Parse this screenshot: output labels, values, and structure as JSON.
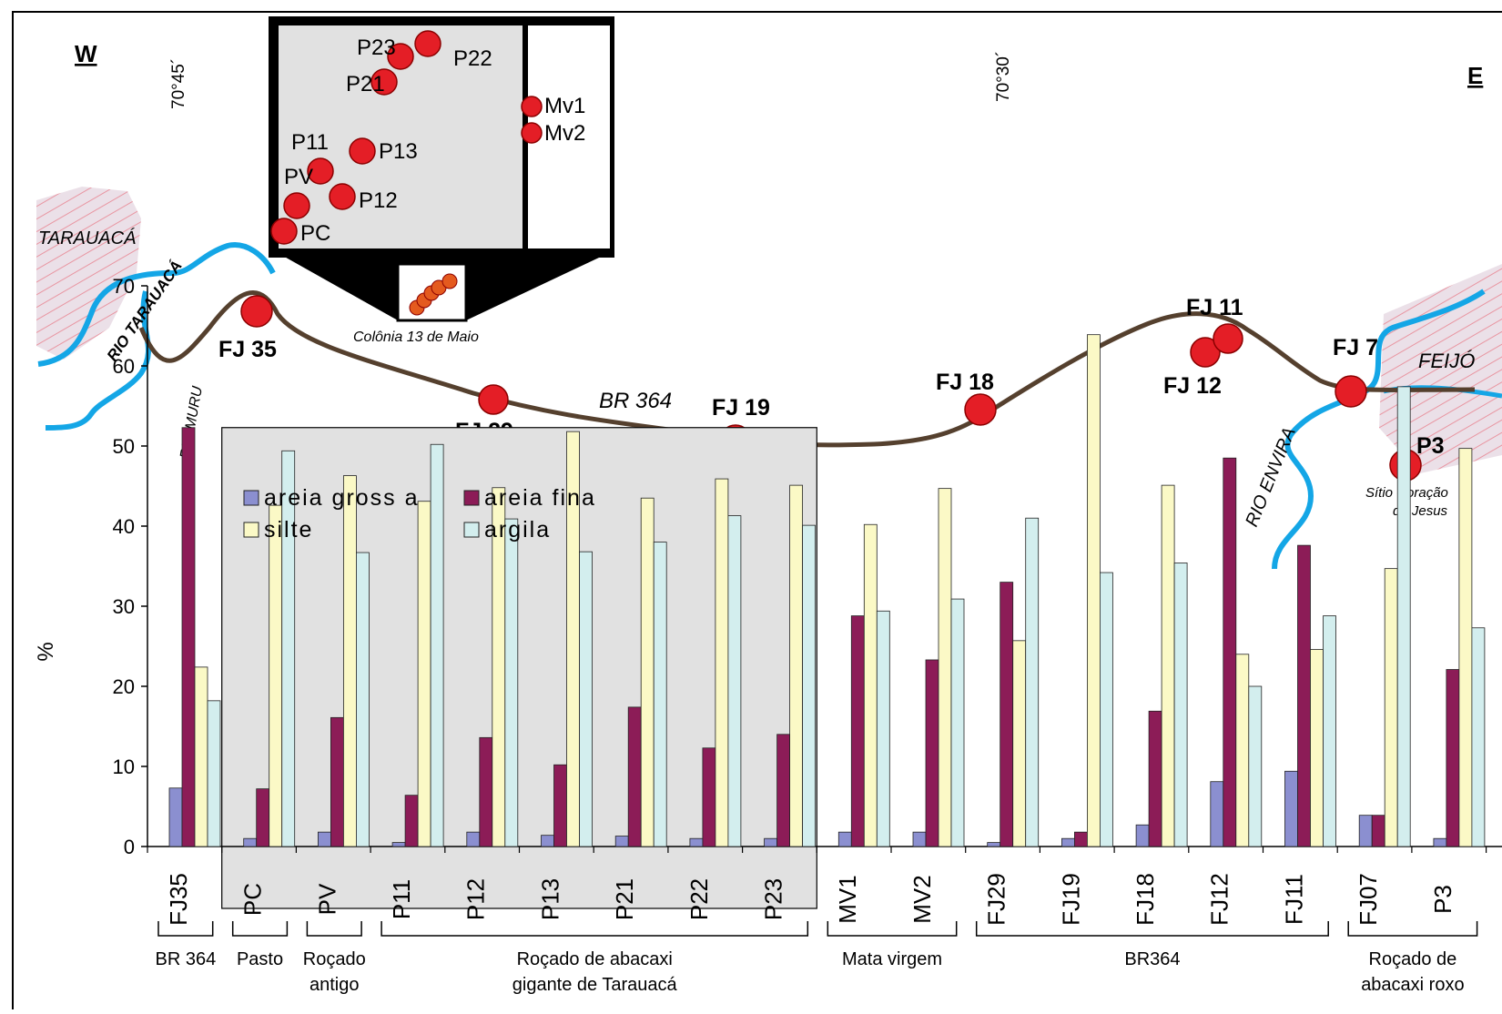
{
  "chart_data": {
    "type": "bar",
    "ylabel": "%",
    "ylim": [
      0,
      70
    ],
    "yticks": [
      0,
      10,
      20,
      30,
      40,
      50,
      60,
      70
    ],
    "categories": [
      "FJ35",
      "PC",
      "PV",
      "P11",
      "P12",
      "P13",
      "P21",
      "P22",
      "P23",
      "MV1",
      "MV2",
      "FJ29",
      "FJ19",
      "FJ18",
      "FJ12",
      "FJ11",
      "FJ07",
      "P3"
    ],
    "series": [
      {
        "name": "areia gross a",
        "color": "#8b8fd0",
        "values": [
          7.3,
          1.0,
          1.8,
          0.5,
          1.8,
          1.4,
          1.3,
          1.0,
          1.0,
          1.8,
          1.8,
          0.5,
          1.0,
          2.7,
          8.1,
          9.4,
          3.9,
          1.0
        ]
      },
      {
        "name": "areia fina",
        "color": "#8c1c57",
        "values": [
          52.3,
          7.2,
          16.1,
          6.4,
          13.6,
          10.2,
          17.4,
          12.3,
          14.0,
          28.8,
          23.3,
          33.0,
          1.8,
          16.9,
          48.5,
          37.6,
          3.9,
          22.1
        ]
      },
      {
        "name": "silte",
        "color": "#fbf9c6",
        "values": [
          22.4,
          42.6,
          46.3,
          43.1,
          44.8,
          51.8,
          43.5,
          45.9,
          45.1,
          40.2,
          44.7,
          25.7,
          63.9,
          45.1,
          24.0,
          24.6,
          34.7,
          49.7
        ]
      },
      {
        "name": "argila",
        "color": "#d3eeee",
        "values": [
          18.2,
          49.4,
          36.7,
          50.2,
          40.9,
          36.8,
          38.0,
          41.3,
          40.1,
          29.4,
          30.9,
          41.0,
          34.2,
          35.4,
          20.0,
          28.8,
          57.4,
          27.3
        ]
      }
    ],
    "legend": [
      {
        "label": "areia gross a",
        "color": "#8b8fd0"
      },
      {
        "label": "areia fina",
        "color": "#8c1c57"
      },
      {
        "label": "silte",
        "color": "#fbf9c6"
      },
      {
        "label": "argila",
        "color": "#d3eeee"
      }
    ],
    "groups": [
      {
        "label_lines": [
          "BR 364"
        ]
      },
      {
        "label_lines": [
          "Pasto"
        ]
      },
      {
        "label_lines": [
          "Roçado",
          "antigo"
        ]
      },
      {
        "label_lines": [
          "Roçado de abacaxi",
          "gigante de Tarauacá"
        ]
      },
      {
        "label_lines": [
          "Mata virgem"
        ]
      },
      {
        "label_lines": [
          "BR364"
        ]
      },
      {
        "label_lines": [
          "Roçado de",
          "abacaxi roxo"
        ]
      }
    ]
  },
  "map": {
    "compass_w": "W",
    "compass_e": "E",
    "longitude_left": "70°45´",
    "longitude_right": "70°30´",
    "towns": {
      "tarauaca": "TARAUACÁ",
      "feijo": "FEIJÓ"
    },
    "rivers": {
      "tarauaca": "RIO TARAUACÁ",
      "muru": "RIO MURU",
      "envira": "RIO ENVIRA"
    },
    "road": "BR 364",
    "colonia": "Colônia 13 de Maio",
    "sitio": [
      "Sítio Coração",
      "de Jesus"
    ],
    "points": [
      "FJ 35",
      "FJ 29",
      "FJ 19",
      "FJ 18",
      "FJ 12",
      "FJ 11",
      "FJ 7",
      "P3"
    ],
    "inset_points": [
      "P23",
      "P22",
      "P21",
      "Mv1",
      "Mv2",
      "P11",
      "P13",
      "PV",
      "P12",
      "PC"
    ]
  }
}
